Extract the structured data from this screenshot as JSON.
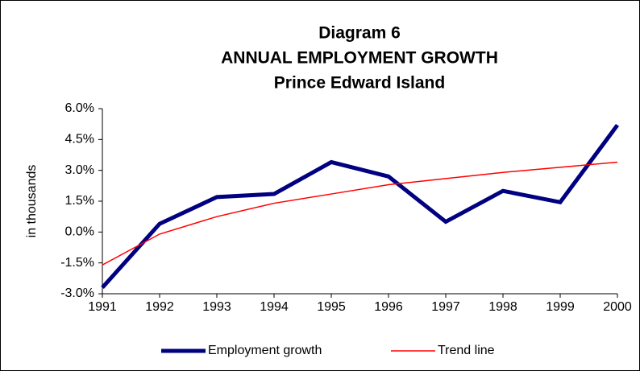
{
  "chart_data": {
    "type": "line",
    "title": [
      "Diagram 6",
      "ANNUAL EMPLOYMENT GROWTH",
      "Prince Edward Island"
    ],
    "y_label": "in thousands",
    "categories": [
      "1991",
      "1992",
      "1993",
      "1994",
      "1995",
      "1996",
      "1997",
      "1998",
      "1999",
      "2000"
    ],
    "series": [
      {
        "name": "Employment growth",
        "color": "#000080",
        "values": [
          -2.7,
          0.4,
          1.7,
          1.85,
          3.4,
          2.7,
          0.5,
          2.0,
          1.45,
          5.2
        ]
      },
      {
        "name": "Trend line",
        "color": "#ff0000",
        "values": [
          -1.6,
          -0.1,
          0.75,
          1.4,
          1.85,
          2.3,
          2.6,
          2.9,
          3.15,
          3.4
        ]
      }
    ],
    "ylim": [
      -3.0,
      6.0
    ],
    "yticks": [
      {
        "value": -3.0,
        "label": "-3.0%"
      },
      {
        "value": -1.5,
        "label": "-1.5%"
      },
      {
        "value": 0,
        "label": "0.0%"
      },
      {
        "value": 1.5,
        "label": "1.5%"
      },
      {
        "value": 3.0,
        "label": "3.0%"
      },
      {
        "value": 4.5,
        "label": "4.5%"
      },
      {
        "value": 6.0,
        "label": "6.0%"
      }
    ],
    "grid": false,
    "legend": "bottom"
  }
}
